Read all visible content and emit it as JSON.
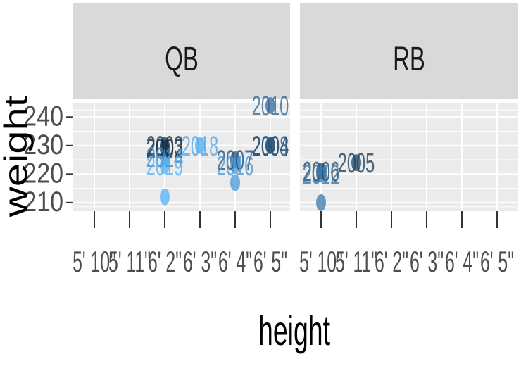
{
  "chart_data": {
    "type": "scatter",
    "xlabel": "height",
    "ylabel": "weight",
    "x_ticks": [
      "5' 10\"",
      "5' 11\"",
      "6' 2\"",
      "6' 3\"",
      "6' 4\"",
      "6' 5\""
    ],
    "y_ticks": [
      210,
      220,
      230,
      240
    ],
    "ylim": [
      207,
      245
    ],
    "grid": true,
    "legend": "none",
    "colors": {
      "panel_bg": "#ebebeb",
      "strip_bg": "#d9d9d9",
      "grid": "#ffffff",
      "axis_text": "#4d4d4d",
      "year_dark": "#132b43",
      "year_light": "#56b1f7"
    },
    "year_range": [
      2002,
      2019
    ],
    "facets": [
      {
        "name": "QB",
        "points": [
          {
            "x": "6' 2\"",
            "y": 229,
            "label": "2002",
            "year": 2002
          },
          {
            "x": "6' 2\"",
            "y": 230,
            "label": "2003",
            "year": 2003
          },
          {
            "x": "6' 2\"",
            "y": 226,
            "label": "2014",
            "year": 2014
          },
          {
            "x": "6' 2\"",
            "y": 223,
            "label": "2019",
            "year": 2019
          },
          {
            "x": "6' 2\"",
            "y": 212,
            "label": "",
            "year": 2019
          },
          {
            "x": "6' 3\"",
            "y": 230,
            "label": "2018",
            "year": 2018
          },
          {
            "x": "6' 4\"",
            "y": 225,
            "label": "2007",
            "year": 2007
          },
          {
            "x": "6' 4\"",
            "y": 223,
            "label": "2016",
            "year": 2016
          },
          {
            "x": "6' 4\"",
            "y": 217,
            "label": "",
            "year": 2016
          },
          {
            "x": "6' 5\"",
            "y": 230,
            "label": "2004",
            "year": 2004
          },
          {
            "x": "6' 5\"",
            "y": 230,
            "label": "2008",
            "year": 2008
          },
          {
            "x": "6' 5\"",
            "y": 244,
            "label": "2010",
            "year": 2010
          }
        ]
      },
      {
        "name": "RB",
        "points": [
          {
            "x": "5' 10\"",
            "y": 221,
            "label": "2006",
            "year": 2006
          },
          {
            "x": "5' 10\"",
            "y": 220,
            "label": "2012",
            "year": 2012
          },
          {
            "x": "5' 10\"",
            "y": 210,
            "label": "",
            "year": 2012
          },
          {
            "x": "5' 11\"",
            "y": 224,
            "label": "2005",
            "year": 2005
          }
        ]
      }
    ]
  }
}
